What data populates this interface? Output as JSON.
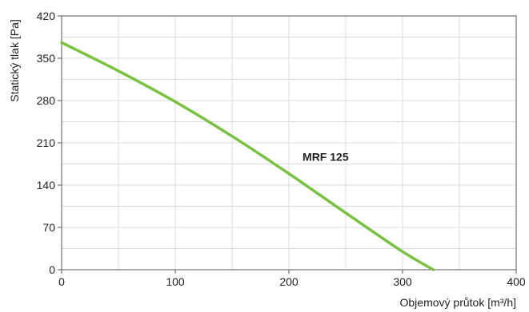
{
  "chart_data": {
    "type": "line",
    "title": "",
    "xlabel": "Objemový průtok [m³/h]",
    "ylabel": "Statický tlak [Pa]",
    "xlim": [
      0,
      400
    ],
    "ylim": [
      0,
      420
    ],
    "xticks": [
      0,
      100,
      200,
      300,
      400
    ],
    "yticks": [
      0,
      70,
      140,
      210,
      280,
      350,
      420
    ],
    "xtick_labels": [
      "0",
      "100",
      "200",
      "300",
      "400"
    ],
    "ytick_labels": [
      "0",
      "70",
      "140",
      "210",
      "280",
      "350",
      "420"
    ],
    "grid": true,
    "legend": "none",
    "series": [
      {
        "name": "MRF 125",
        "color": "#7ac142",
        "x": [
          0,
          50,
          100,
          150,
          200,
          250,
          300,
          327
        ],
        "y": [
          376,
          329,
          278,
          221,
          159,
          94,
          30,
          0
        ]
      }
    ]
  }
}
